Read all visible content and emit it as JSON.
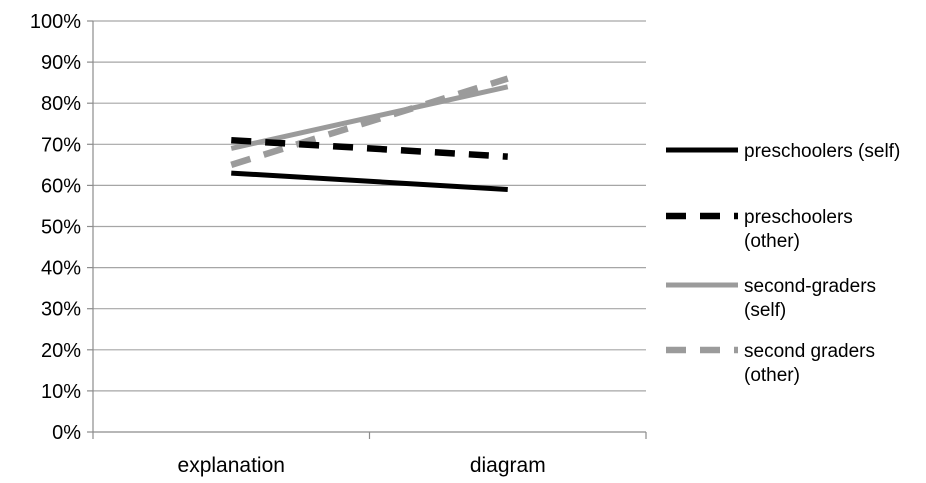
{
  "chart_data": {
    "type": "line",
    "categories": [
      "explanation",
      "diagram"
    ],
    "series": [
      {
        "name": "preschoolers (self)",
        "label_lines": [
          "preschoolers (self)"
        ],
        "values": [
          63,
          59
        ],
        "color": "#000000",
        "dash": "solid"
      },
      {
        "name": "preschoolers (other)",
        "label_lines": [
          "preschoolers",
          "(other)"
        ],
        "values": [
          71,
          67
        ],
        "color": "#000000",
        "dash": "dashed"
      },
      {
        "name": "second-graders (self)",
        "label_lines": [
          "second-graders",
          "(self)"
        ],
        "values": [
          69,
          84
        ],
        "color": "#9b9b9b",
        "dash": "solid"
      },
      {
        "name": "second graders (other)",
        "label_lines": [
          "second graders",
          "(other)"
        ],
        "values": [
          65,
          86
        ],
        "color": "#9b9b9b",
        "dash": "dashed"
      }
    ],
    "y_ticks": [
      "0%",
      "10%",
      "20%",
      "30%",
      "40%",
      "50%",
      "60%",
      "70%",
      "80%",
      "90%",
      "100%"
    ],
    "ylim": [
      0,
      100
    ],
    "grid": true,
    "legend_position": "right"
  }
}
